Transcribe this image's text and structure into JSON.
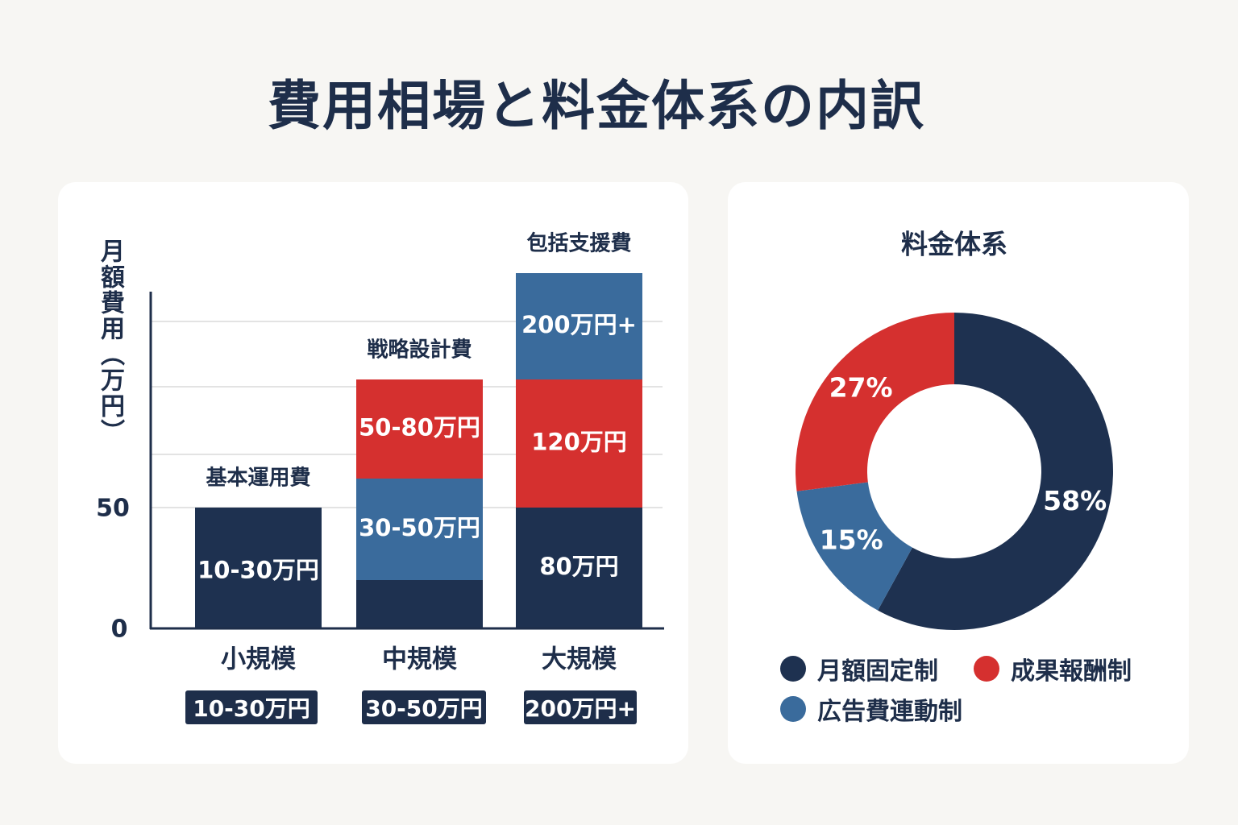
{
  "title": "費用相場と料金体系の内訳",
  "colors": {
    "navy": "#1e3150",
    "blue": "#3a6b9c",
    "red": "#d5302f",
    "grid": "#e3e3e3"
  },
  "chart_data": [
    {
      "type": "bar",
      "stacked": true,
      "ylabel": "月額費用（万円）",
      "y_ticks": [
        "0",
        "50"
      ],
      "categories": [
        "小規模",
        "中規模",
        "大規模"
      ],
      "range_labels": [
        "10-30万円",
        "30-50万円",
        "200万円+"
      ],
      "series": [
        {
          "name": "基本運用費",
          "color": "#1e3150",
          "values": [
            50,
            20,
            50
          ],
          "labels": [
            "10-30万円",
            "",
            "80万円"
          ]
        },
        {
          "name": "",
          "color": "#3a6b9c",
          "values": [
            0,
            42,
            0
          ],
          "labels": [
            "",
            "30-50万円",
            ""
          ]
        },
        {
          "name": "戦略設計費",
          "color": "#d5302f",
          "values": [
            0,
            41,
            53
          ],
          "labels": [
            "",
            "50-80万円",
            "120万円"
          ]
        },
        {
          "name": "包括支援費",
          "color": "#3a6b9c",
          "values": [
            0,
            0,
            44
          ],
          "labels": [
            "",
            "",
            "200万円+"
          ]
        }
      ],
      "bar_top_labels": [
        "基本運用費",
        "戦略設計費",
        "包括支援費"
      ],
      "grid": true
    },
    {
      "type": "pie",
      "donut": true,
      "title": "料金体系",
      "slices": [
        {
          "name": "月額固定制",
          "value": 58,
          "label": "58%",
          "color": "#1e3150"
        },
        {
          "name": "広告費連動制",
          "value": 15,
          "label": "15%",
          "color": "#3a6b9c"
        },
        {
          "name": "成果報酬制",
          "value": 27,
          "label": "27%",
          "color": "#d5302f"
        }
      ],
      "legend": "bottom"
    }
  ]
}
